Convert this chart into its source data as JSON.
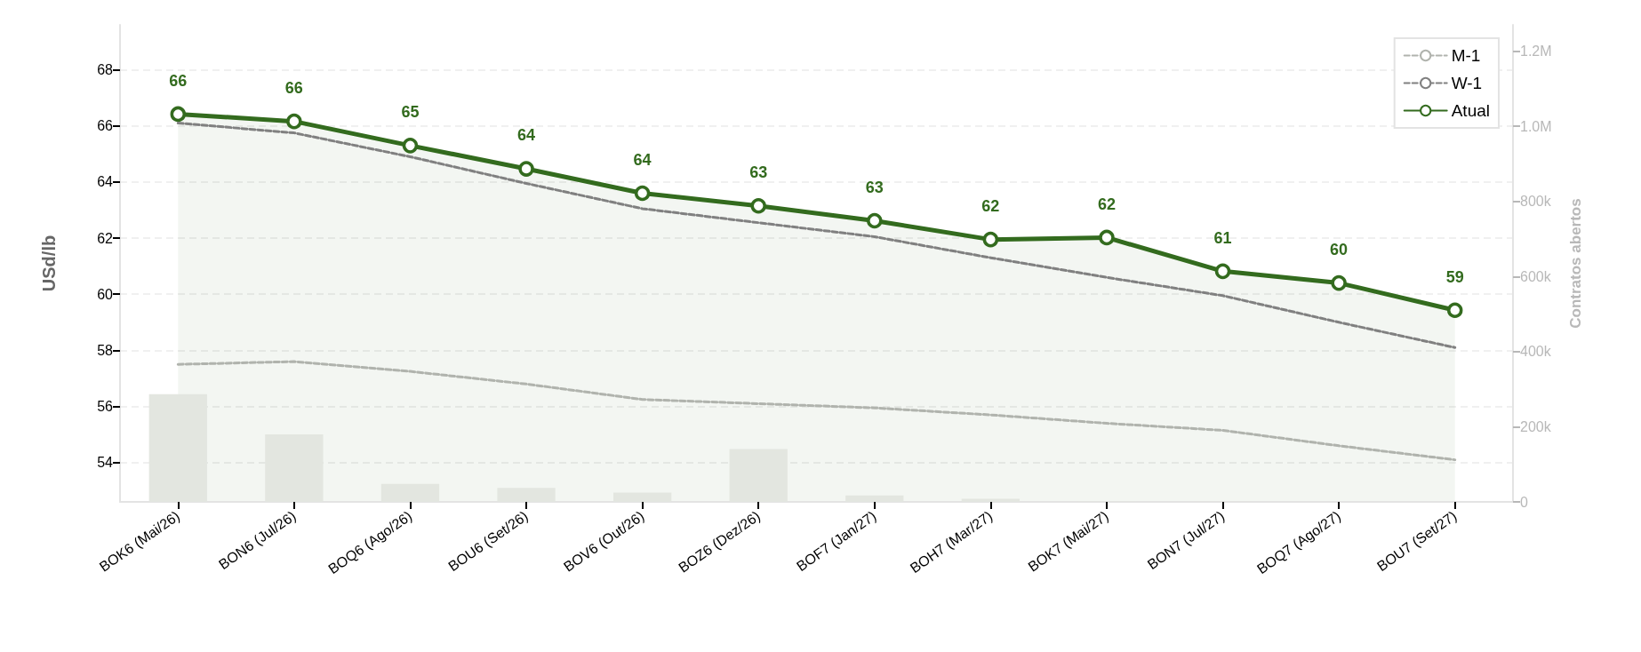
{
  "chart_data": {
    "type": "line",
    "ylabel": "USd/lb",
    "y2label": "Contratos abertos",
    "categories": [
      "BOK6 (Mai/26)",
      "BON6 (Jul/26)",
      "BOQ6 (Ago/26)",
      "BOU6 (Set/26)",
      "BOV6 (Out/26)",
      "BOZ6 (Dez/26)",
      "BOF7 (Jan/27)",
      "BOH7 (Mar/27)",
      "BOK7 (Mai/27)",
      "BON7 (Jul/27)",
      "BOQ7 (Ago/27)",
      "BOU7 (Set/27)"
    ],
    "series": [
      {
        "type": "bar",
        "axis": "y2",
        "color": "#e3e6e0",
        "values": [
          287000,
          180000,
          48000,
          37000,
          25000,
          141000,
          17000,
          8000,
          2000,
          1000,
          0,
          0
        ]
      },
      {
        "name": "M-1",
        "color": "#b0b3ad",
        "line_style": "dashed",
        "marker": "none",
        "values": [
          57.5,
          57.6,
          57.25,
          56.8,
          56.25,
          56.1,
          55.95,
          55.7,
          55.4,
          55.15,
          54.6,
          54.1
        ]
      },
      {
        "name": "W-1",
        "color": "#808080",
        "line_style": "dashed",
        "marker": "none",
        "values": [
          66.1,
          65.75,
          64.9,
          63.95,
          63.05,
          62.55,
          62.05,
          61.3,
          60.6,
          59.95,
          59.0,
          58.1
        ]
      },
      {
        "name": "Atual",
        "type": "area",
        "color": "#336b1e",
        "line_style": "solid",
        "marker": "circle",
        "values": [
          66.42,
          66.16,
          65.3,
          64.47,
          63.6,
          63.15,
          62.62,
          61.95,
          62.02,
          60.82,
          60.4,
          59.43
        ],
        "value_labels": [
          "66",
          "66",
          "65",
          "64",
          "64",
          "63",
          "63",
          "62",
          "62",
          "61",
          "60",
          "59"
        ]
      }
    ],
    "ylim": [
      52.6,
      69.6
    ],
    "yticks": [
      54,
      56,
      58,
      60,
      62,
      64,
      66,
      68
    ],
    "y2lim": [
      0,
      1270000
    ],
    "y2ticks": [
      {
        "value": 0,
        "label": "0"
      },
      {
        "value": 200000,
        "label": "200k"
      },
      {
        "value": 400000,
        "label": "400k"
      },
      {
        "value": 600000,
        "label": "600k"
      },
      {
        "value": 800000,
        "label": "800k"
      },
      {
        "value": 1000000,
        "label": "1.0M"
      },
      {
        "value": 1200000,
        "label": "1.2M"
      }
    ],
    "grid": "y",
    "legend": "top right"
  }
}
